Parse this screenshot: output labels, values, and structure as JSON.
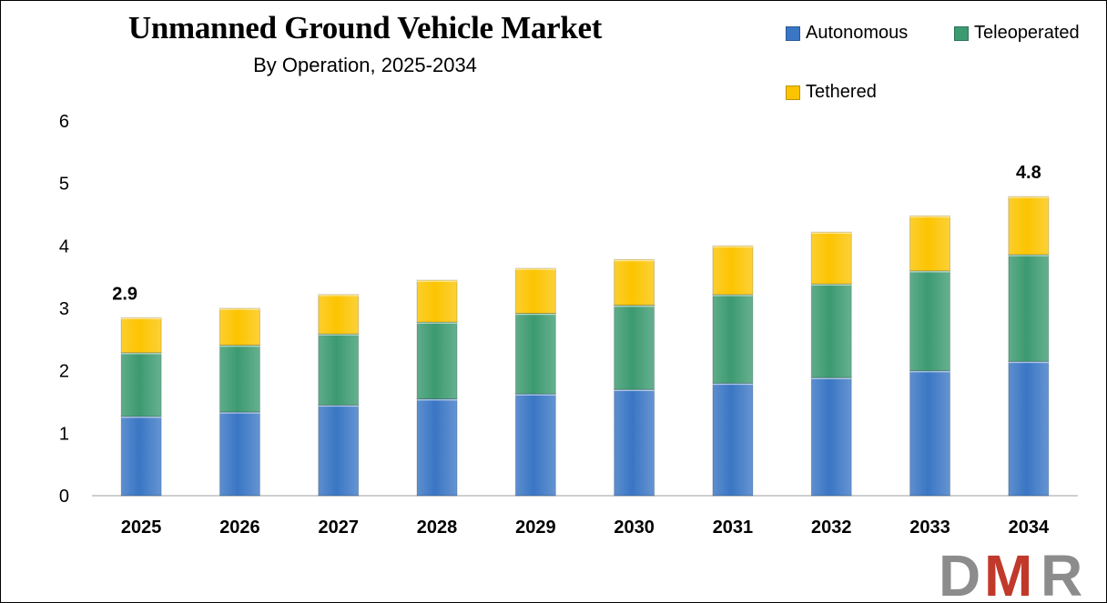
{
  "chart_data": {
    "type": "bar",
    "stacked": true,
    "title": "Unmanned Ground Vehicle Market",
    "subtitle": "By Operation, 2025-2034",
    "categories": [
      "2025",
      "2026",
      "2027",
      "2028",
      "2029",
      "2030",
      "2031",
      "2032",
      "2033",
      "2034"
    ],
    "series": [
      {
        "name": "Autonomous",
        "color": "#3a76c4",
        "values": [
          1.27,
          1.34,
          1.45,
          1.55,
          1.63,
          1.7,
          1.8,
          1.89,
          2.0,
          2.15
        ]
      },
      {
        "name": "Teleoperated",
        "color": "#3c9a70",
        "values": [
          1.02,
          1.07,
          1.14,
          1.23,
          1.29,
          1.35,
          1.42,
          1.5,
          1.6,
          1.71
        ]
      },
      {
        "name": "Tethered",
        "color": "#fcc400",
        "values": [
          0.56,
          0.59,
          0.63,
          0.67,
          0.72,
          0.73,
          0.78,
          0.83,
          0.88,
          0.93
        ]
      }
    ],
    "data_labels": [
      {
        "category": "2025",
        "text": "2.9"
      },
      {
        "category": "2034",
        "text": "4.8"
      }
    ],
    "ylim": [
      0,
      6
    ],
    "yticks": [
      "0",
      "1",
      "2",
      "3",
      "4",
      "5",
      "6"
    ],
    "grid": false,
    "legend_position": "top-right"
  },
  "logo": {
    "text": "DMR",
    "colors": [
      "#8c8c8c",
      "#c0392b",
      "#8c8c8c"
    ]
  }
}
